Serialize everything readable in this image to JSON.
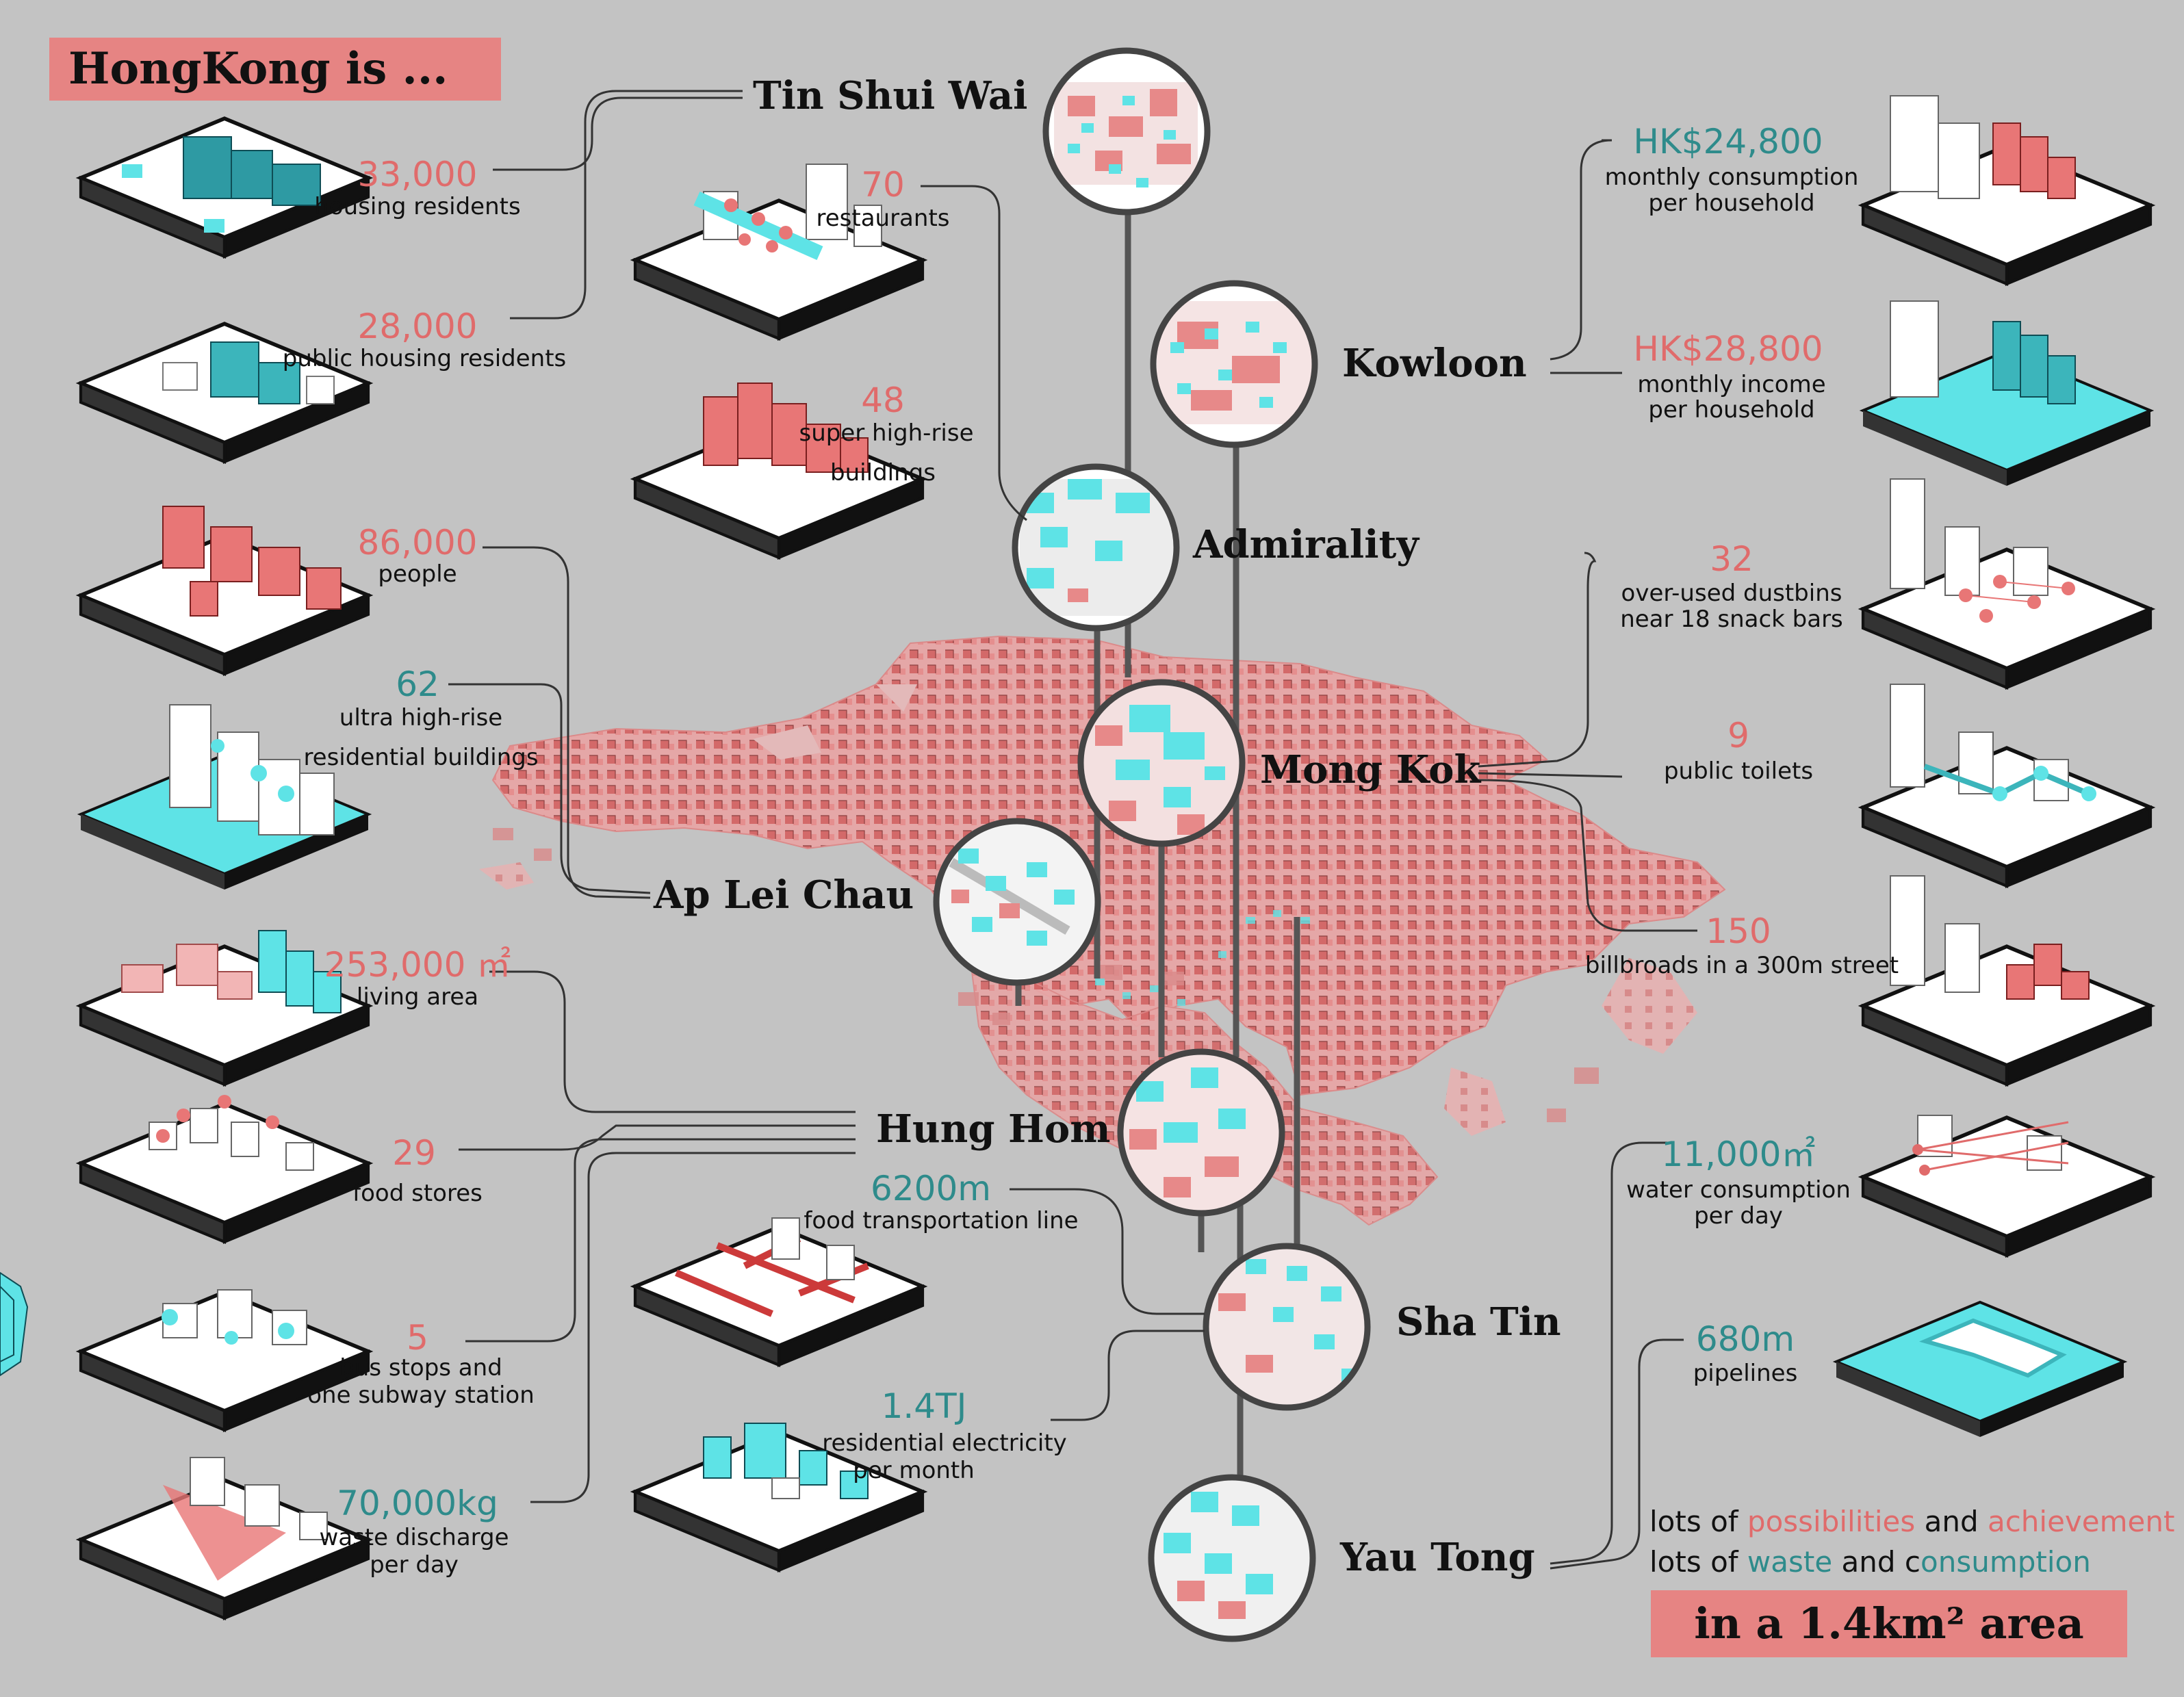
{
  "title": "HongKong is ...",
  "footer": "in a 1.4km² area",
  "summary": {
    "line1": {
      "a": "lots of ",
      "b": "possibilities",
      "c": " and ",
      "d": "achievement"
    },
    "line2": {
      "a": "lots of ",
      "b": "waste",
      "c": " and c",
      "d": "onsumption"
    }
  },
  "districts": {
    "tin_shui_wai": "Tin Shui Wai",
    "kowloon": "Kowloon",
    "admirality": "Admirality",
    "mong_kok": "Mong Kok",
    "ap_lei_chau": "Ap Lei Chau",
    "hung_hom": "Hung Hom",
    "sha_tin": "Sha Tin",
    "yau_tong": "Yau Tong"
  },
  "stats": {
    "housing": {
      "value": "33,000",
      "label": "housing residents"
    },
    "public_housing": {
      "value": "28,000",
      "label": "public housing residents"
    },
    "people": {
      "value": "86,000",
      "label": "people"
    },
    "ultra_highrise": {
      "value": "62",
      "label1": "ultra high-rise",
      "label2": "residential buildings"
    },
    "living_area": {
      "value": "253,000 ㎡",
      "label": "living area"
    },
    "food_stores": {
      "value": "29",
      "label": "food stores"
    },
    "bus_stops": {
      "value": "5",
      "label1": "bus stops and",
      "label2": "one subway station"
    },
    "waste": {
      "value": "70,000kg",
      "label1": "waste discharge",
      "label2": "per day"
    },
    "restaurants": {
      "value": "70",
      "label": "restaurants"
    },
    "super_highrise": {
      "value": "48",
      "label1": "super high-rise",
      "label2": "buildings"
    },
    "food_transport": {
      "value": "6200m",
      "label": "food transportation line"
    },
    "electricity": {
      "value": "1.4TJ",
      "label1": "residential electricity",
      "label2": "per month"
    },
    "consumption": {
      "value": "HK$24,800",
      "label1": "monthly consumption",
      "label2": "per household"
    },
    "income": {
      "value": "HK$28,800",
      "label1": "monthly income",
      "label2": "per household"
    },
    "dustbins": {
      "value": "32",
      "label1": "over-used dustbins",
      "label2": "near 18 snack bars"
    },
    "toilets": {
      "value": "9",
      "label": "public toilets"
    },
    "billboards": {
      "value": "150",
      "label": "billbroads in a 300m street"
    },
    "water": {
      "value": "11,000㎡",
      "label1": "water consumption",
      "label2": "per day"
    },
    "pipelines": {
      "value": "680m",
      "label": "pipelines"
    }
  },
  "colors": {
    "background": "#c3c3c3",
    "accent_red": "#e06b6b",
    "accent_teal": "#2e8b8b",
    "title_bg": "#e68483",
    "map_fill": "#e2a3a3",
    "block_teal": "#5ee3e6"
  }
}
